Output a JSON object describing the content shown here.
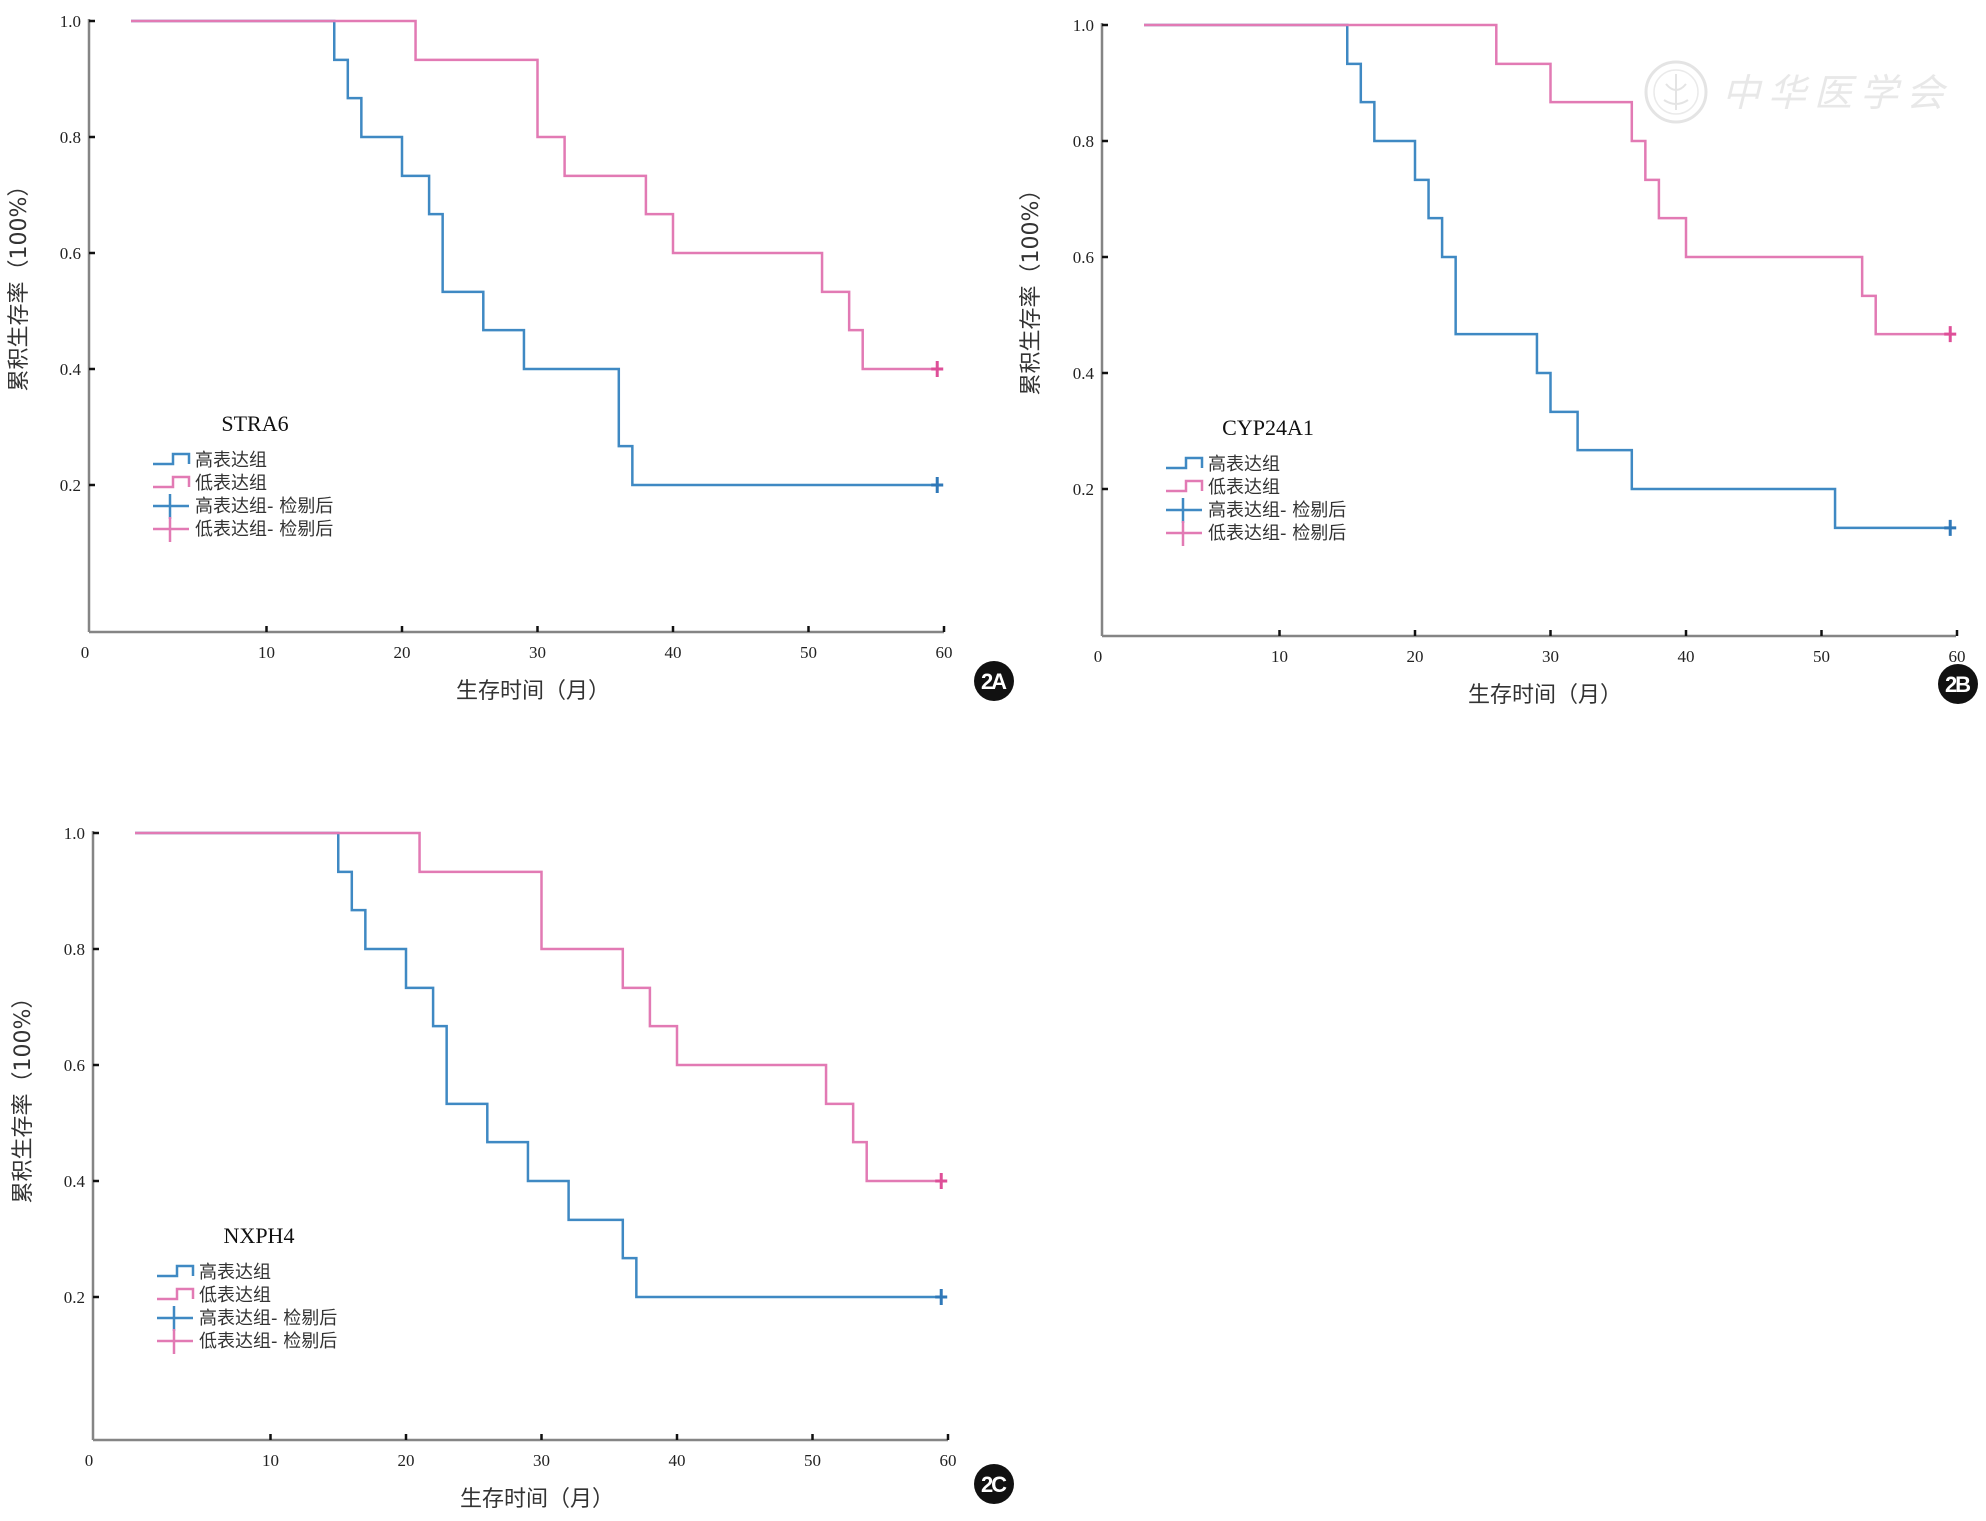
{
  "figure": {
    "watermark": {
      "text": "中华医学会",
      "icon": "society-seal-icon"
    }
  },
  "colors": {
    "high": "#3f89c3",
    "low": "#e27ab4",
    "high_censor": "#2f78b8",
    "low_censor": "#de4f98",
    "axis": "#858585",
    "tick": "#111111"
  },
  "chart_data": [
    {
      "panel": "2A",
      "type": "line",
      "subtype": "kaplan-meier",
      "title": "STRA6",
      "xlabel": "生存时间（月）",
      "ylabel": "累积生存率（100%）",
      "xlim": [
        0,
        60
      ],
      "ylim": [
        0,
        1.0
      ],
      "xticks": [
        "0",
        "10",
        "20",
        "30",
        "40",
        "50",
        "60"
      ],
      "yticks": [
        "0.2",
        "0.4",
        "0.6",
        "0.8",
        "1.0"
      ],
      "grid": false,
      "legend_position": "lower-left",
      "legend": [
        "高表达组",
        "低表达组",
        "高表达组- 检剔后",
        "低表达组- 检剔后"
      ],
      "series": [
        {
          "name": "高表达组",
          "key": "high",
          "steps": [
            [
              0,
              1.0
            ],
            [
              15,
              0.933
            ],
            [
              16,
              0.867
            ],
            [
              17,
              0.8
            ],
            [
              20,
              0.733
            ],
            [
              22,
              0.667
            ],
            [
              23,
              0.533
            ],
            [
              26,
              0.467
            ],
            [
              29,
              0.4
            ],
            [
              36,
              0.267
            ],
            [
              37,
              0.2
            ]
          ],
          "end": 59.5,
          "censored": [
            [
              59.5,
              0.2
            ]
          ]
        },
        {
          "name": "低表达组",
          "key": "low",
          "steps": [
            [
              0,
              1.0
            ],
            [
              21,
              0.933
            ],
            [
              30,
              0.8
            ],
            [
              32,
              0.733
            ],
            [
              38,
              0.667
            ],
            [
              40,
              0.6
            ],
            [
              51,
              0.533
            ],
            [
              53,
              0.467
            ],
            [
              54,
              0.4
            ]
          ],
          "end": 59.5,
          "censored": [
            [
              59.5,
              0.4
            ]
          ]
        }
      ]
    },
    {
      "panel": "2B",
      "type": "line",
      "subtype": "kaplan-meier",
      "title": "CYP24A1",
      "xlabel": "生存时间（月）",
      "ylabel": "累积生存率（100%）",
      "xlim": [
        0,
        60
      ],
      "ylim": [
        0,
        1.0
      ],
      "xticks": [
        "0",
        "10",
        "20",
        "30",
        "40",
        "50",
        "60"
      ],
      "yticks": [
        "0.2",
        "0.4",
        "0.6",
        "0.8",
        "1.0"
      ],
      "grid": false,
      "legend_position": "lower-left",
      "legend": [
        "高表达组",
        "低表达组",
        "高表达组- 检剔后",
        "低表达组- 检剔后"
      ],
      "series": [
        {
          "name": "高表达组",
          "key": "high",
          "steps": [
            [
              0,
              1.0
            ],
            [
              15,
              0.933
            ],
            [
              16,
              0.867
            ],
            [
              17,
              0.8
            ],
            [
              20,
              0.733
            ],
            [
              21,
              0.667
            ],
            [
              22,
              0.6
            ],
            [
              23,
              0.467
            ],
            [
              29,
              0.4
            ],
            [
              30,
              0.333
            ],
            [
              32,
              0.267
            ],
            [
              36,
              0.2
            ],
            [
              51,
              0.133
            ]
          ],
          "end": 59.5,
          "censored": [
            [
              59.5,
              0.133
            ]
          ]
        },
        {
          "name": "低表达组",
          "key": "low",
          "steps": [
            [
              0,
              1.0
            ],
            [
              26,
              0.933
            ],
            [
              30,
              0.867
            ],
            [
              36,
              0.8
            ],
            [
              37,
              0.733
            ],
            [
              38,
              0.667
            ],
            [
              40,
              0.6
            ],
            [
              53,
              0.533
            ],
            [
              54,
              0.467
            ]
          ],
          "end": 59.5,
          "censored": [
            [
              59.5,
              0.467
            ]
          ]
        }
      ]
    },
    {
      "panel": "2C",
      "type": "line",
      "subtype": "kaplan-meier",
      "title": "NXPH4",
      "xlabel": "生存时间（月）",
      "ylabel": "累积生存率（100%）",
      "xlim": [
        0,
        60
      ],
      "ylim": [
        0,
        1.0
      ],
      "xticks": [
        "0",
        "10",
        "20",
        "30",
        "40",
        "50",
        "60"
      ],
      "yticks": [
        "0.2",
        "0.4",
        "0.6",
        "0.8",
        "1.0"
      ],
      "grid": false,
      "legend_position": "lower-left",
      "legend": [
        "高表达组",
        "低表达组",
        "高表达组- 检剔后",
        "低表达组- 检剔后"
      ],
      "series": [
        {
          "name": "高表达组",
          "key": "high",
          "steps": [
            [
              0,
              1.0
            ],
            [
              15,
              0.933
            ],
            [
              16,
              0.867
            ],
            [
              17,
              0.8
            ],
            [
              20,
              0.733
            ],
            [
              22,
              0.667
            ],
            [
              23,
              0.533
            ],
            [
              26,
              0.467
            ],
            [
              29,
              0.4
            ],
            [
              32,
              0.333
            ],
            [
              36,
              0.267
            ],
            [
              37,
              0.2
            ]
          ],
          "end": 59.5,
          "censored": [
            [
              59.5,
              0.2
            ]
          ]
        },
        {
          "name": "低表达组",
          "key": "low",
          "steps": [
            [
              0,
              1.0
            ],
            [
              21,
              0.933
            ],
            [
              30,
              0.8
            ],
            [
              36,
              0.733
            ],
            [
              38,
              0.667
            ],
            [
              40,
              0.6
            ],
            [
              51,
              0.533
            ],
            [
              53,
              0.467
            ],
            [
              54,
              0.4
            ]
          ],
          "end": 59.5,
          "censored": [
            [
              59.5,
              0.4
            ]
          ]
        }
      ]
    }
  ]
}
